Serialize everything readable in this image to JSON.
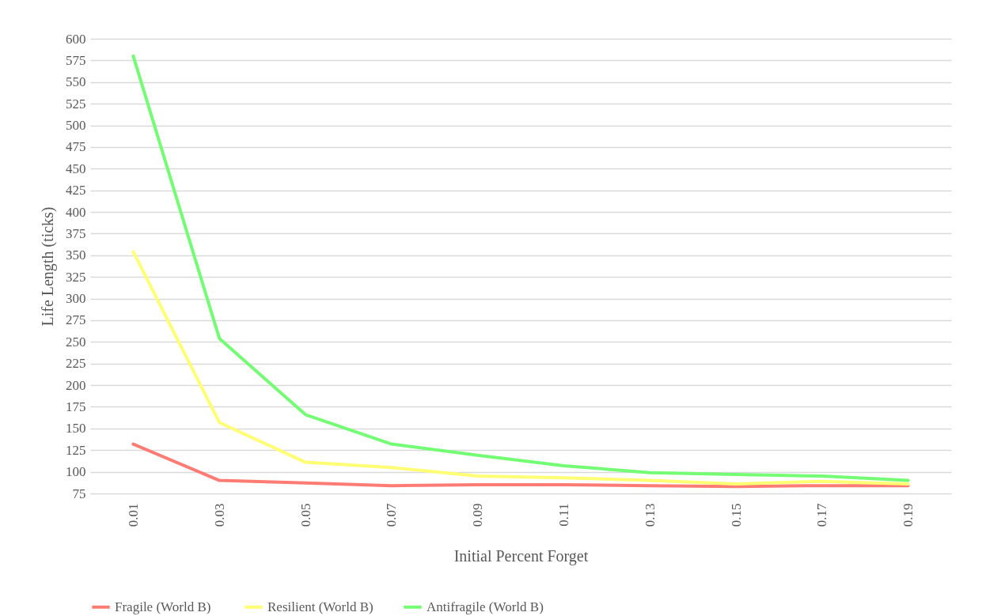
{
  "chart_data": {
    "type": "line",
    "xlabel": "Initial Percent Forget",
    "ylabel": "Life Length (ticks)",
    "categories": [
      "0.01",
      "0.03",
      "0.05",
      "0.07",
      "0.09",
      "0.11",
      "0.13",
      "0.15",
      "0.17",
      "0.19"
    ],
    "series": [
      {
        "name": "Fragile  (World B)",
        "color": "#ff7c74",
        "values": [
          132,
          90,
          87,
          84,
          85,
          85,
          84,
          83,
          84,
          84
        ]
      },
      {
        "name": "Resilient (World B)",
        "color": "#ffff74",
        "values": [
          354,
          157,
          111,
          105,
          95,
          93,
          90,
          86,
          89,
          86
        ]
      },
      {
        "name": "Antifragile (World B)",
        "color": "#74fc74",
        "values": [
          580,
          254,
          166,
          132,
          119,
          107,
          99,
          97,
          95,
          90
        ]
      }
    ],
    "ylim": [
      75,
      600
    ],
    "yticks": [
      75,
      100,
      125,
      150,
      175,
      200,
      225,
      250,
      275,
      300,
      325,
      350,
      375,
      400,
      425,
      450,
      475,
      500,
      525,
      550,
      575,
      600
    ],
    "grid": "y",
    "legend": "bottom",
    "marker": "none",
    "line_style": "solid"
  }
}
